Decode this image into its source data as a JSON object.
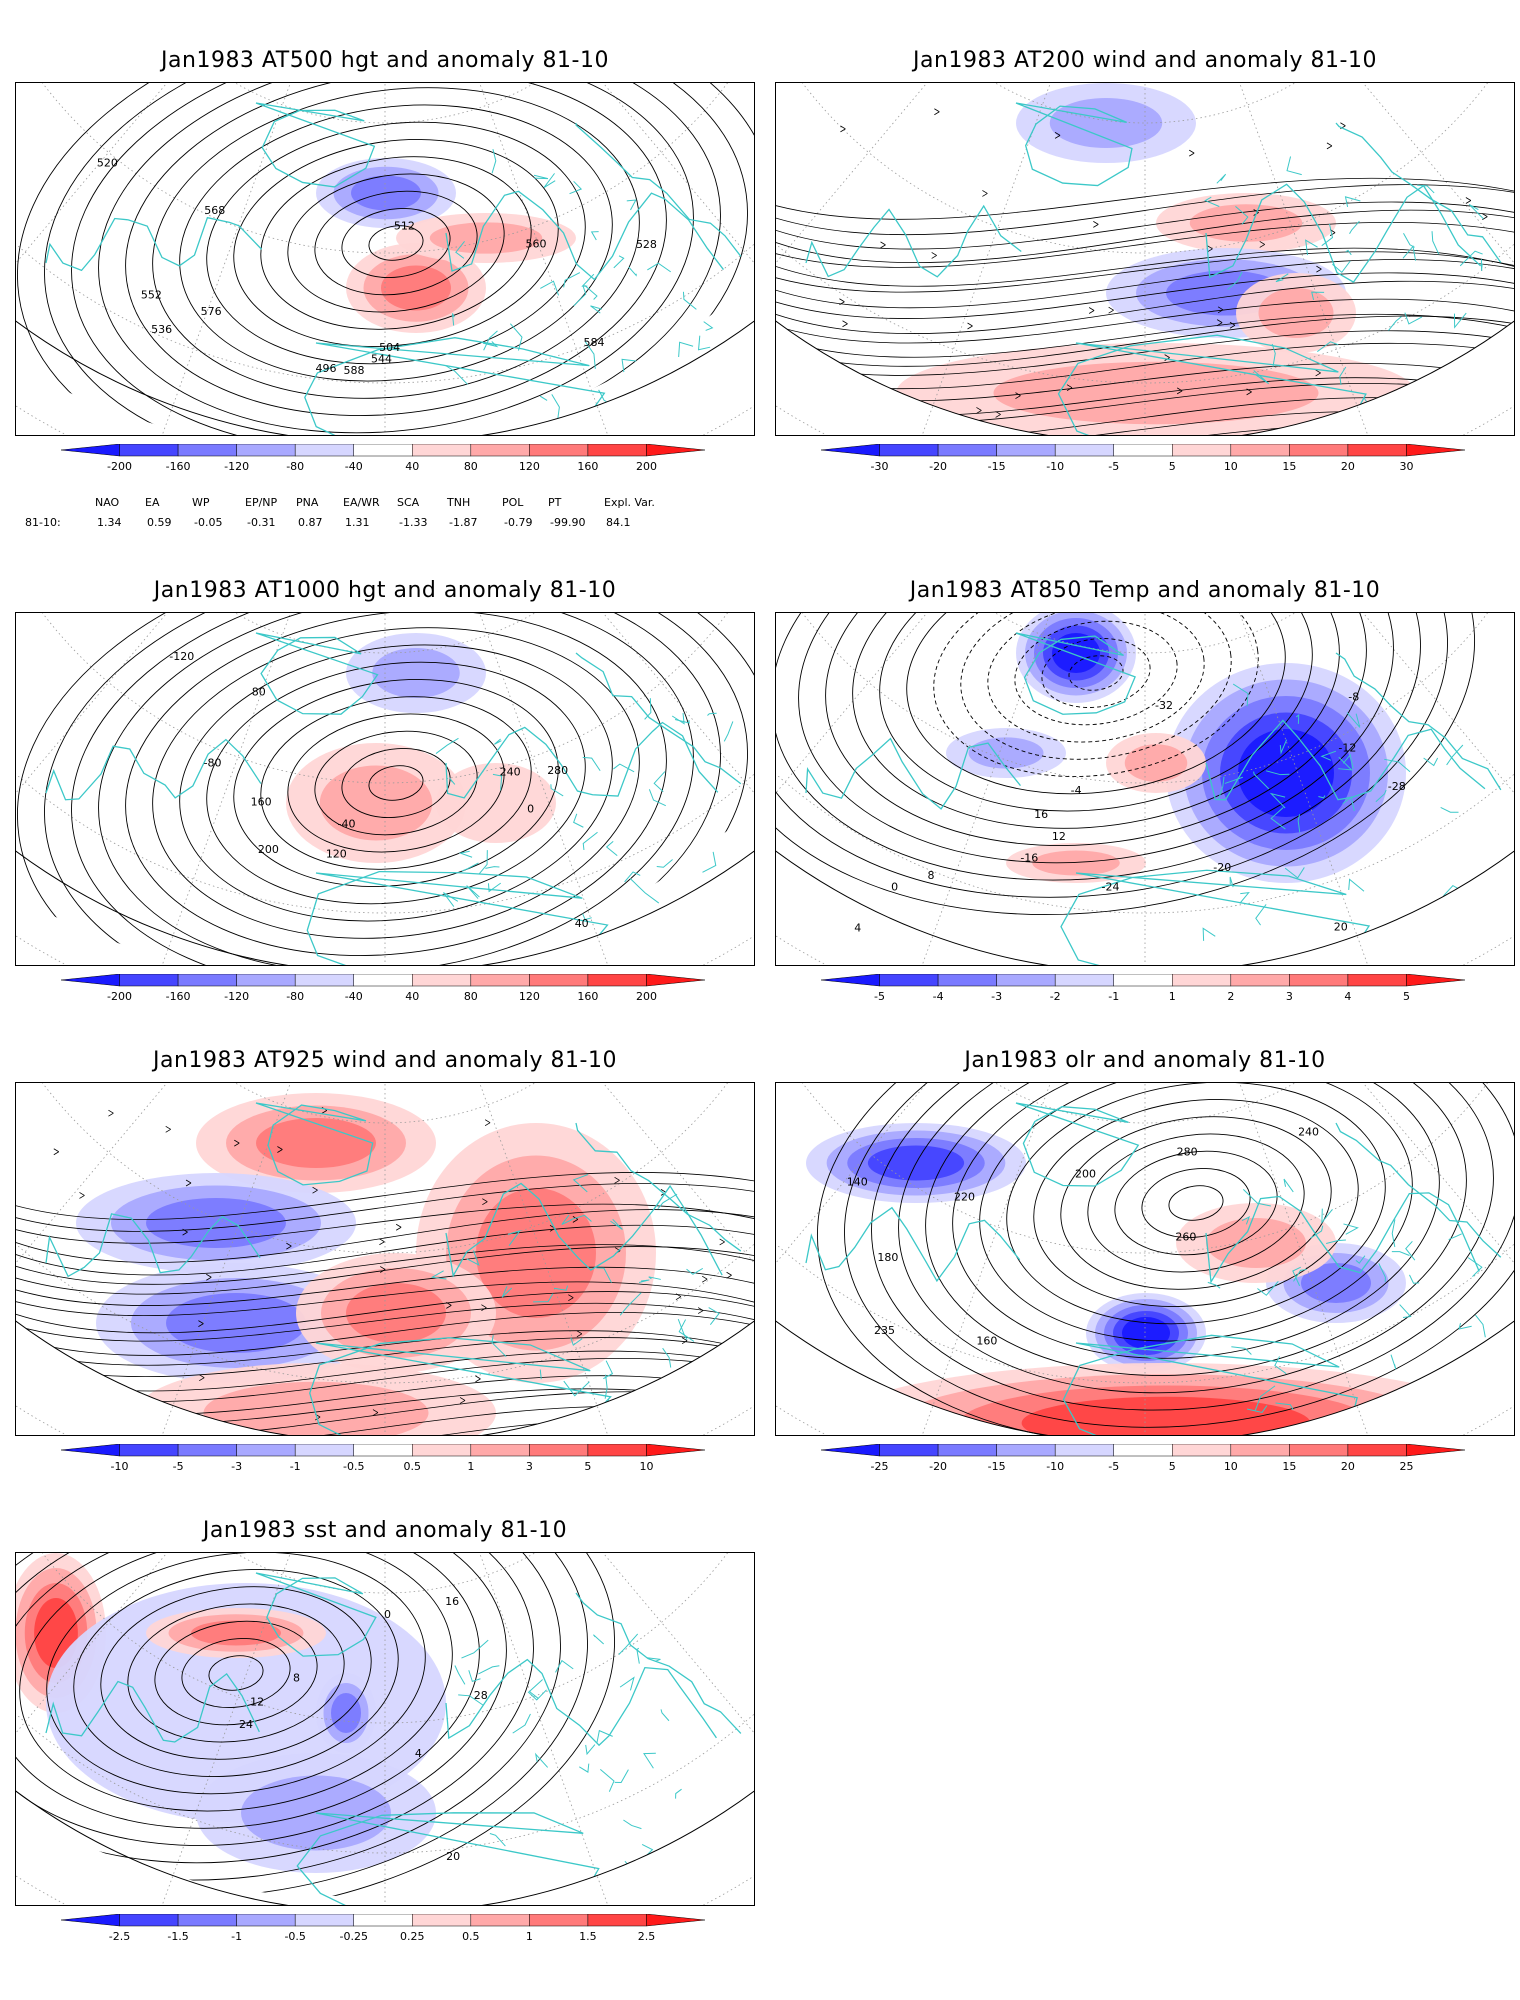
{
  "panels": [
    {
      "id": "p1",
      "title": "Jan1983 AT500 hgt and anomaly 81-10",
      "field": "hgt",
      "contour_labels": [
        "496",
        "504",
        "512",
        "520",
        "528",
        "536",
        "544",
        "552",
        "560",
        "568",
        "576",
        "584",
        "588"
      ],
      "colorbar": [
        "-200",
        "-160",
        "-120",
        "-80",
        "-40",
        "40",
        "80",
        "120",
        "160",
        "200"
      ]
    },
    {
      "id": "p2",
      "title": "Jan1983 AT200 wind and anomaly 81-10",
      "field": "wind",
      "contour_labels": [],
      "colorbar": [
        "-30",
        "-20",
        "-15",
        "-10",
        "-5",
        "5",
        "10",
        "15",
        "20",
        "30"
      ]
    },
    {
      "id": "p3",
      "title": "Jan1983 AT1000 hgt and anomaly 81-10",
      "field": "hgt",
      "contour_labels": [
        "-40",
        "-80",
        "-120",
        "0",
        "40",
        "80",
        "120",
        "160",
        "200",
        "240",
        "280"
      ],
      "colorbar": [
        "-200",
        "-160",
        "-120",
        "-80",
        "-40",
        "40",
        "80",
        "120",
        "160",
        "200"
      ]
    },
    {
      "id": "p4",
      "title": "Jan1983 AT850 Temp and anomaly 81-10",
      "field": "temp",
      "contour_labels": [
        "-28",
        "-32",
        "-24",
        "-20",
        "-16",
        "-12",
        "-8",
        "-4",
        "0",
        "4",
        "8",
        "12",
        "16",
        "20"
      ],
      "colorbar": [
        "-5",
        "-4",
        "-3",
        "-2",
        "-1",
        "1",
        "2",
        "3",
        "4",
        "5"
      ]
    },
    {
      "id": "p5",
      "title": "Jan1983 AT925 wind and anomaly 81-10",
      "field": "wind",
      "contour_labels": [],
      "colorbar": [
        "-10",
        "-5",
        "-3",
        "-1",
        "-0.5",
        "0.5",
        "1",
        "3",
        "5",
        "10"
      ]
    },
    {
      "id": "p6",
      "title": "Jan1983 olr and anomaly 81-10",
      "field": "olr",
      "contour_labels": [
        "140",
        "160",
        "180",
        "200",
        "220",
        "235",
        "240",
        "260",
        "280"
      ],
      "colorbar": [
        "-25",
        "-20",
        "-15",
        "-10",
        "-5",
        "5",
        "10",
        "15",
        "20",
        "25"
      ]
    },
    {
      "id": "p7",
      "title": "Jan1983 sst and anomaly 81-10",
      "field": "sst",
      "contour_labels": [
        "0",
        "4",
        "8",
        "12",
        "16",
        "20",
        "24",
        "28"
      ],
      "colorbar": [
        "-2.5",
        "-1.5",
        "-1",
        "-0.5",
        "-0.25",
        "0.25",
        "0.5",
        "1",
        "1.5",
        "2.5"
      ]
    }
  ],
  "indices": {
    "headers": [
      "NAO",
      "EA",
      "WP",
      "EP/NP",
      "PNA",
      "EA/WR",
      "SCA",
      "TNH",
      "POL",
      "PT",
      "Expl. Var."
    ],
    "row_label": "81-10:",
    "values": [
      "1.34",
      "0.59",
      "-0.05",
      "-0.31",
      "0.87",
      "1.31",
      "-1.33",
      "-1.87",
      "-0.79",
      "-99.90",
      "84.1"
    ]
  },
  "colors": {
    "coast": "#3cc8c8",
    "blue_scale": [
      "#1a1aff",
      "#4545ff",
      "#7a7aff",
      "#a9a9ff",
      "#d6d6ff"
    ],
    "red_scale": [
      "#ffd6d6",
      "#ffa9a9",
      "#ff7a7a",
      "#ff4545",
      "#ff1a1a"
    ]
  }
}
